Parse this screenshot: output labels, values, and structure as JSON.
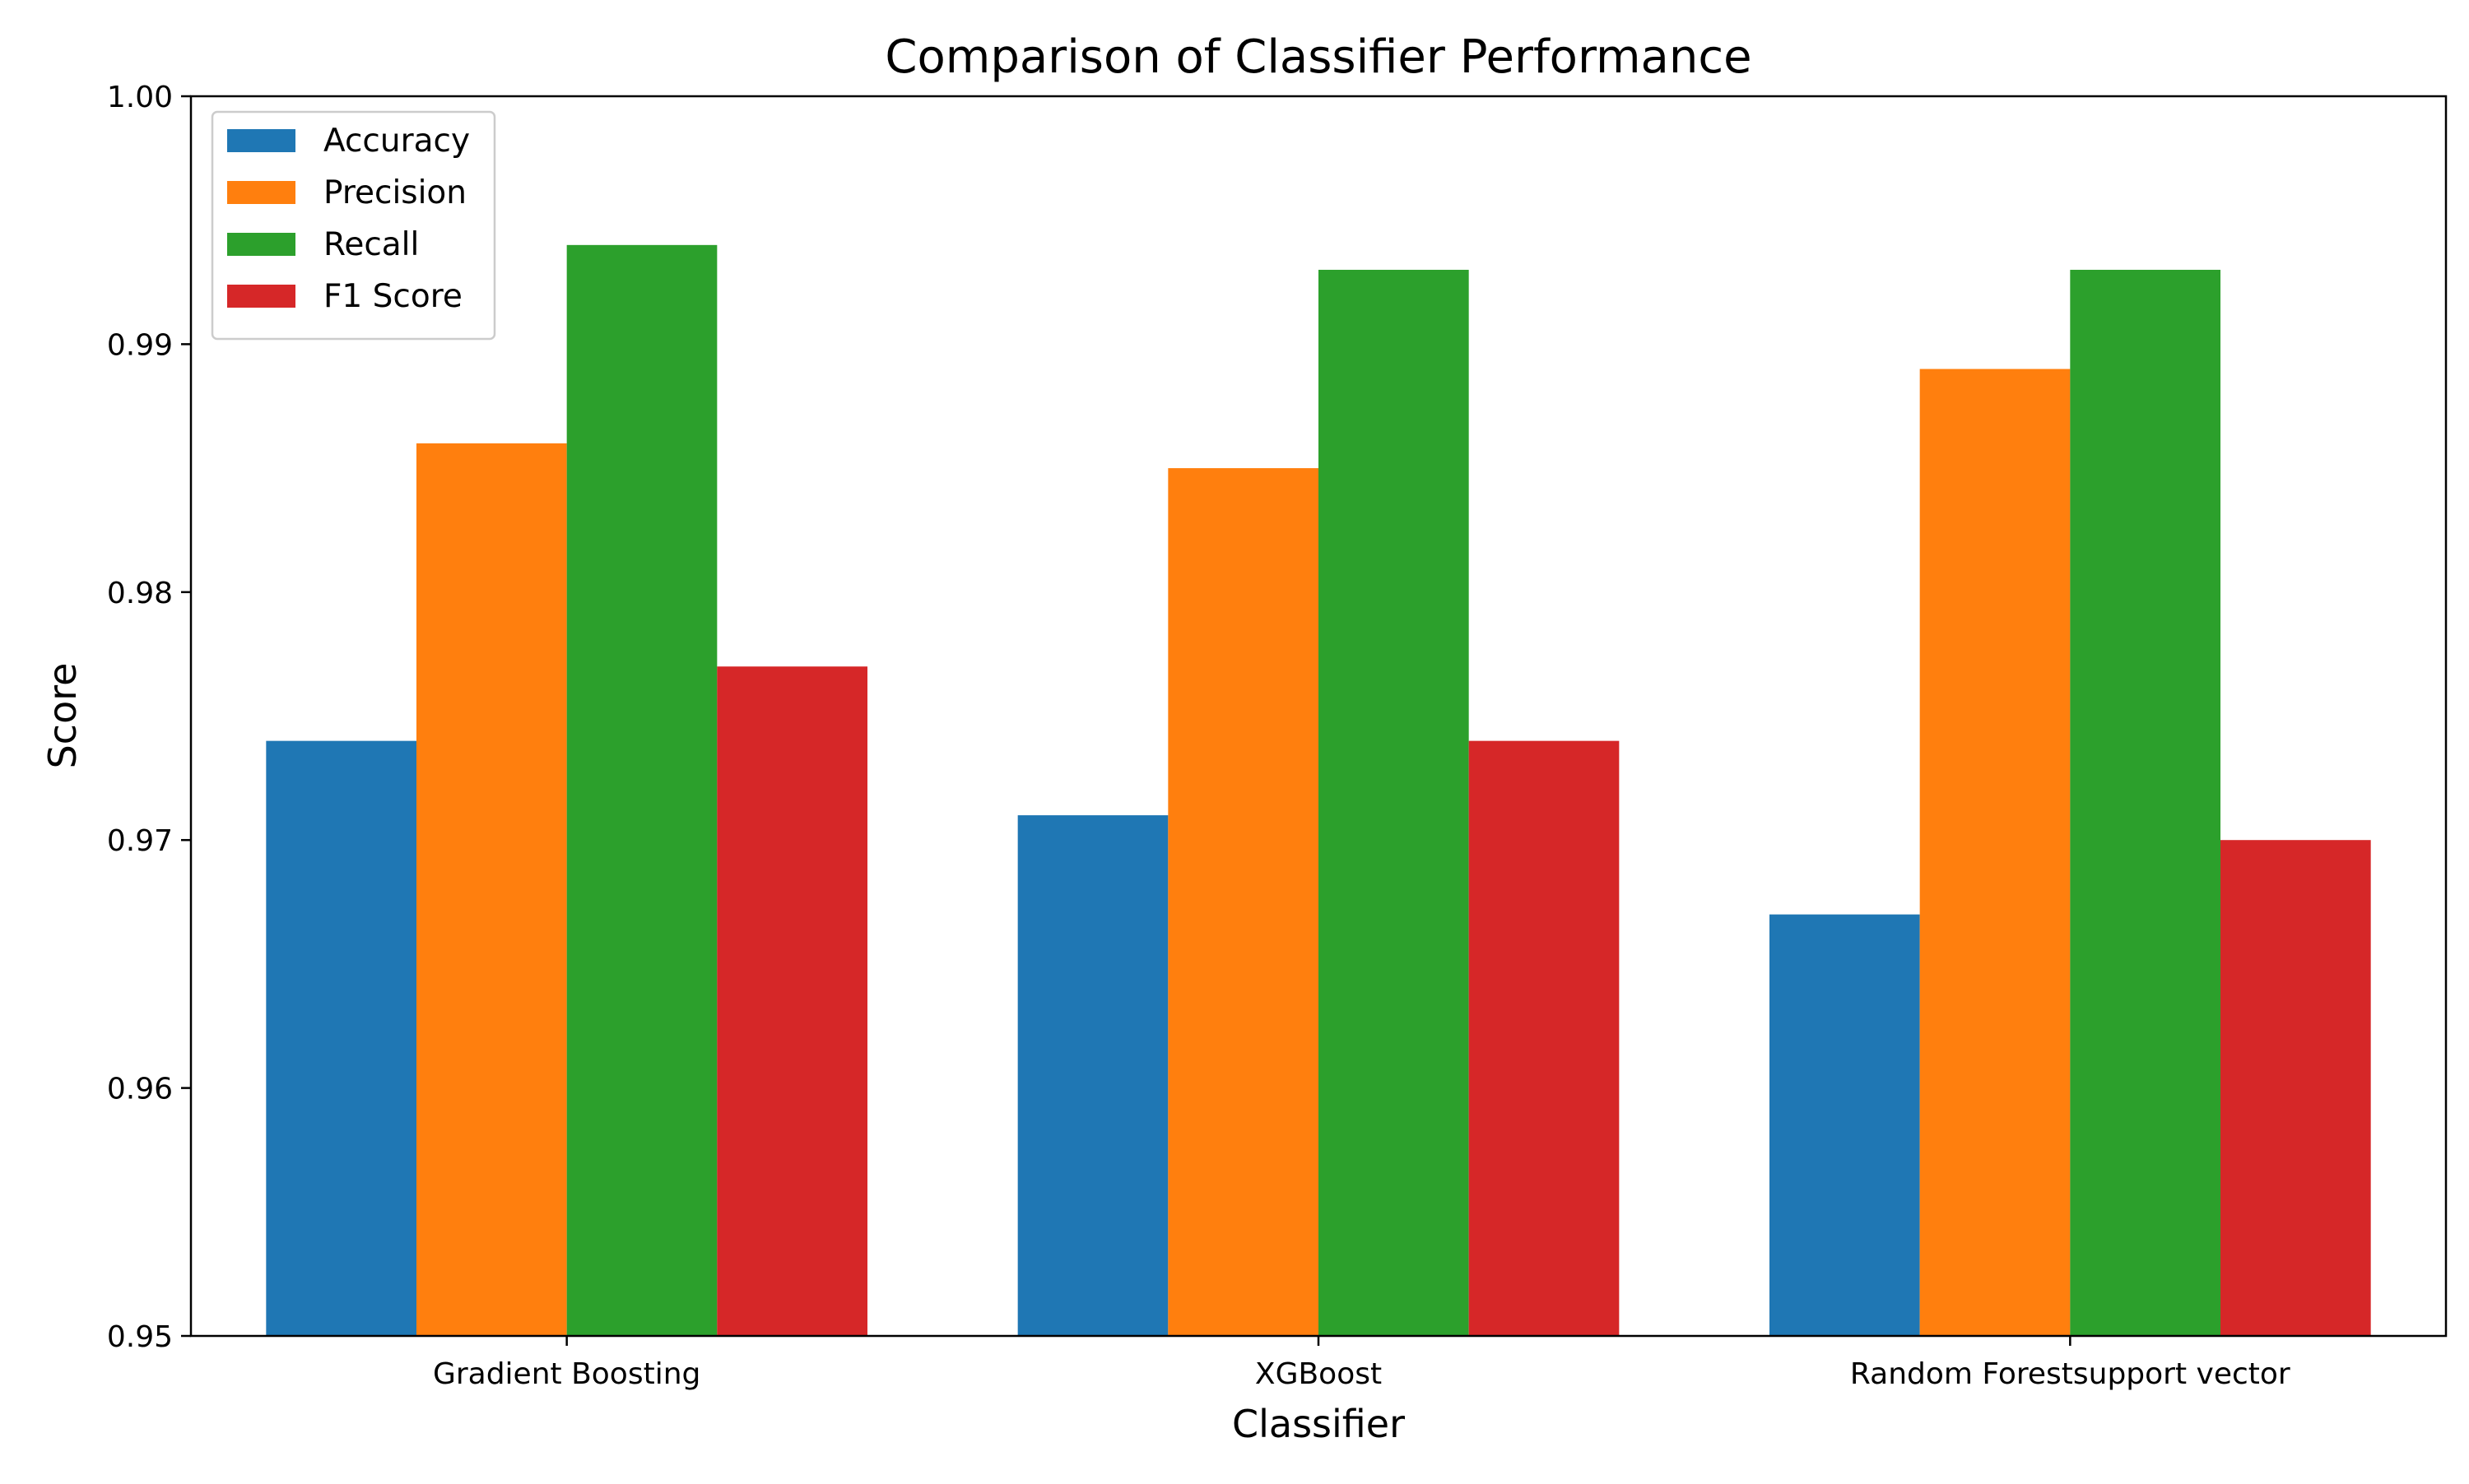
{
  "chart_data": {
    "type": "bar",
    "title": "Comparison of Classifier Performance",
    "xlabel": "Classifier",
    "ylabel": "Score",
    "categories": [
      "Gradient Boosting",
      "XGBoost",
      "Random Forestsupport vector"
    ],
    "series": [
      {
        "name": "Accuracy",
        "color": "#1f77b4",
        "values": [
          0.974,
          0.971,
          0.967
        ]
      },
      {
        "name": "Precision",
        "color": "#ff7f0e",
        "values": [
          0.986,
          0.985,
          0.989
        ]
      },
      {
        "name": "Recall",
        "color": "#2ca02c",
        "values": [
          0.994,
          0.993,
          0.993
        ]
      },
      {
        "name": "F1 Score",
        "color": "#d62728",
        "values": [
          0.977,
          0.974,
          0.97
        ]
      }
    ],
    "ylim": [
      0.95,
      1.0
    ],
    "yticks": [
      0.95,
      0.96,
      0.97,
      0.98,
      0.99,
      1.0
    ],
    "ytick_labels": [
      "0.95",
      "0.96",
      "0.97",
      "0.98",
      "0.99",
      "1.00"
    ],
    "grid": false,
    "legend_position": "upper-left"
  }
}
